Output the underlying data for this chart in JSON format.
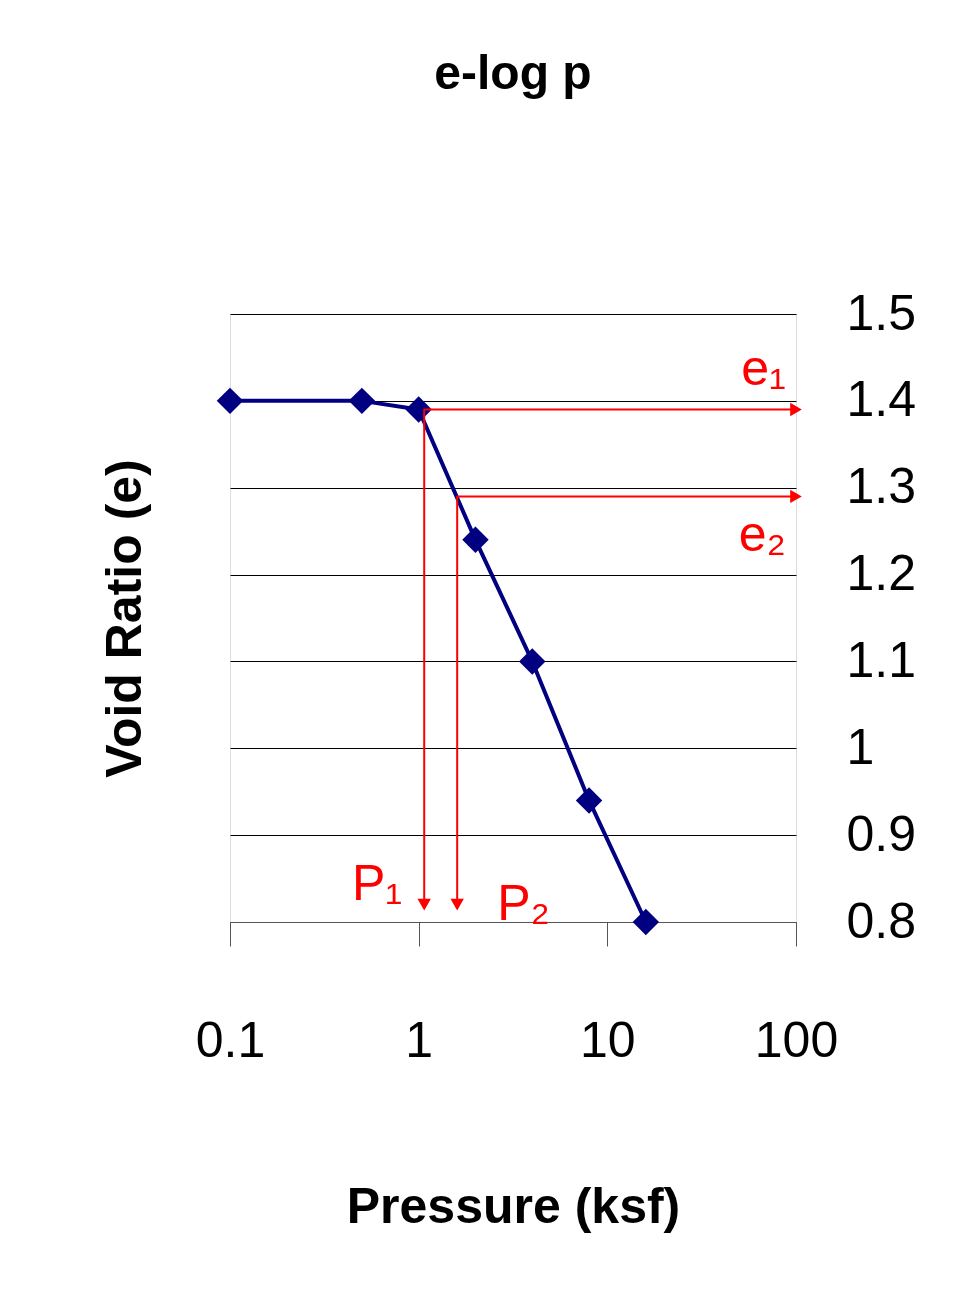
{
  "chart_data": {
    "type": "line",
    "title": "e-log p",
    "xlabel": "Pressure (ksf)",
    "ylabel": "Void Ratio (e)",
    "x": [
      0.1,
      0.5,
      1,
      2,
      4,
      8,
      16
    ],
    "series": [
      {
        "color": "#000080",
        "values": [
          1.4,
          1.4,
          1.39,
          1.24,
          1.1,
          0.94,
          0.8
        ]
      },
      {
        "color": "#ff0000",
        "x": [
          100,
          1.07,
          1.07
        ],
        "values": [
          1.39,
          1.39,
          0.82
        ],
        "marker": "triangle"
      },
      {
        "color": "#ff0000",
        "x": [
          100,
          1.6,
          1.6
        ],
        "values": [
          1.29,
          1.29,
          0.82
        ],
        "marker": "triangle"
      }
    ],
    "xlim": [
      0.1,
      100
    ],
    "xticks": [
      0.1,
      1,
      10,
      100
    ],
    "ylim": [
      0.8,
      1.5
    ],
    "yticks": [
      0.8,
      0.9,
      1,
      1.1,
      1.2,
      1.3,
      1.4,
      1.5
    ],
    "log": "x",
    "grid": "y",
    "marker": "diamond",
    "line_style": "solid",
    "annotations": [
      "e₁",
      "e₂",
      "P₁",
      "P₂"
    ]
  }
}
